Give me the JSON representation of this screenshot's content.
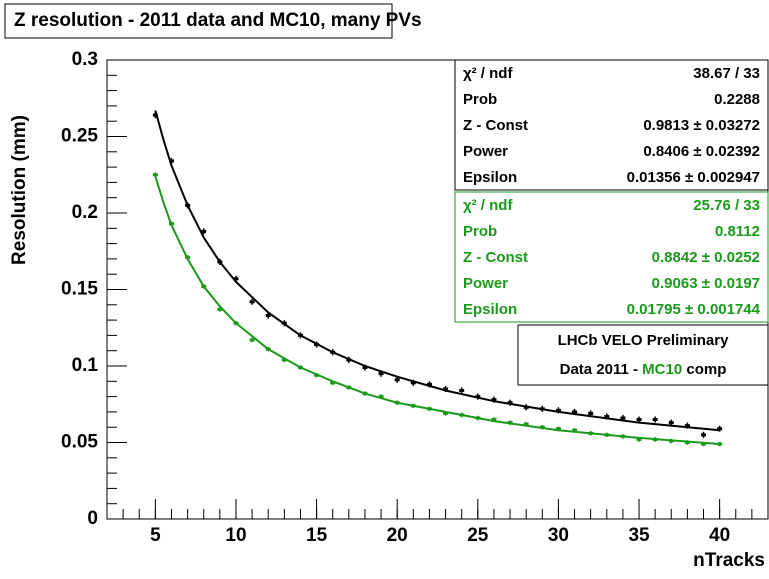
{
  "chart_data": {
    "type": "scatter",
    "title": "Z resolution - 2011 data and MC10, many PVs",
    "x_label": "nTracks",
    "y_label": "Resolution (mm)",
    "x": [
      5,
      6,
      7,
      8,
      9,
      10,
      11,
      12,
      13,
      14,
      15,
      16,
      17,
      18,
      19,
      20,
      21,
      22,
      23,
      24,
      25,
      26,
      27,
      28,
      29,
      30,
      31,
      32,
      33,
      34,
      35,
      36,
      37,
      38,
      39,
      40
    ],
    "series": [
      {
        "color": "#000000",
        "values": [
          0.264,
          0.234,
          0.205,
          0.188,
          0.168,
          0.157,
          0.142,
          0.133,
          0.128,
          0.12,
          0.114,
          0.109,
          0.104,
          0.099,
          0.095,
          0.091,
          0.089,
          0.088,
          0.085,
          0.084,
          0.08,
          0.078,
          0.076,
          0.073,
          0.072,
          0.071,
          0.07,
          0.069,
          0.067,
          0.066,
          0.065,
          0.065,
          0.063,
          0.061,
          0.055,
          0.059
        ],
        "errors": [
          0.002,
          0.002,
          0.002,
          0.002,
          0.002,
          0.002,
          0.002,
          0.002,
          0.002,
          0.002,
          0.002,
          0.002,
          0.002,
          0.002,
          0.002,
          0.002,
          0.002,
          0.002,
          0.002,
          0.002,
          0.002,
          0.002,
          0.002,
          0.002,
          0.002,
          0.002,
          0.002,
          0.002,
          0.002,
          0.002,
          0.002,
          0.002,
          0.002,
          0.002,
          0.002,
          0.002
        ]
      },
      {
        "color": "#1a9a1a",
        "values": [
          0.225,
          0.193,
          0.171,
          0.152,
          0.137,
          0.128,
          0.117,
          0.111,
          0.104,
          0.099,
          0.094,
          0.089,
          0.086,
          0.082,
          0.08,
          0.076,
          0.074,
          0.072,
          0.069,
          0.068,
          0.066,
          0.065,
          0.063,
          0.062,
          0.06,
          0.059,
          0.058,
          0.056,
          0.055,
          0.054,
          0.052,
          0.052,
          0.051,
          0.05,
          0.049,
          0.049
        ],
        "errors": [
          0.0015,
          0.0015,
          0.0015,
          0.0015,
          0.0015,
          0.0015,
          0.0015,
          0.0015,
          0.0015,
          0.0015,
          0.0015,
          0.0015,
          0.0015,
          0.0015,
          0.0015,
          0.0015,
          0.0015,
          0.0015,
          0.0015,
          0.0015,
          0.0015,
          0.0015,
          0.0015,
          0.0015,
          0.0015,
          0.0015,
          0.0015,
          0.0015,
          0.0015,
          0.0015,
          0.0015,
          0.0015,
          0.0015,
          0.0015,
          0.0015,
          0.0015
        ]
      }
    ],
    "fits": [
      {
        "color": "#000000",
        "x": [
          5,
          5.5,
          6,
          7,
          8,
          9,
          10,
          12,
          14,
          16,
          18,
          20,
          23,
          26,
          30,
          35,
          40
        ],
        "values": [
          0.267,
          0.248,
          0.231,
          0.205,
          0.184,
          0.168,
          0.155,
          0.135,
          0.12,
          0.109,
          0.1,
          0.093,
          0.084,
          0.077,
          0.07,
          0.063,
          0.058
        ]
      },
      {
        "color": "#1a9a1a",
        "x": [
          5,
          5.5,
          6,
          7,
          8,
          9,
          10,
          12,
          14,
          16,
          18,
          20,
          23,
          26,
          30,
          35,
          40
        ],
        "values": [
          0.224,
          0.207,
          0.192,
          0.17,
          0.152,
          0.139,
          0.128,
          0.111,
          0.099,
          0.09,
          0.082,
          0.076,
          0.07,
          0.064,
          0.058,
          0.053,
          0.049
        ]
      }
    ],
    "xlim": [
      2,
      43
    ],
    "xticks": [
      5,
      10,
      15,
      20,
      25,
      30,
      35,
      40
    ],
    "ylim": [
      0,
      0.3
    ],
    "yticks": [
      0,
      0.05,
      0.1,
      0.15,
      0.2,
      0.25,
      0.3
    ],
    "stats": [
      {
        "color": "#000000",
        "rows": [
          [
            "χ² / ndf",
            "38.67 / 33"
          ],
          [
            "Prob",
            "0.2288"
          ],
          [
            "Z - Const",
            "0.9813 ± 0.03272"
          ],
          [
            "Power",
            "0.8406 ± 0.02392"
          ],
          [
            "Epsilon",
            "0.01356 ± 0.002947"
          ]
        ]
      },
      {
        "color": "#1a9a1a",
        "rows": [
          [
            "χ² / ndf",
            "25.76 / 33"
          ],
          [
            "Prob",
            "0.8112"
          ],
          [
            "Z - Const",
            "0.8842 ± 0.0252"
          ],
          [
            "Power",
            "0.9063 ± 0.0197"
          ],
          [
            "Epsilon",
            "0.01795 ± 0.001744"
          ]
        ]
      }
    ],
    "note": {
      "line1": "LHCb VELO Preliminary",
      "line2_start": "Data 2011 - ",
      "line2_mc": "MC10",
      "line2_end": " comp"
    }
  }
}
